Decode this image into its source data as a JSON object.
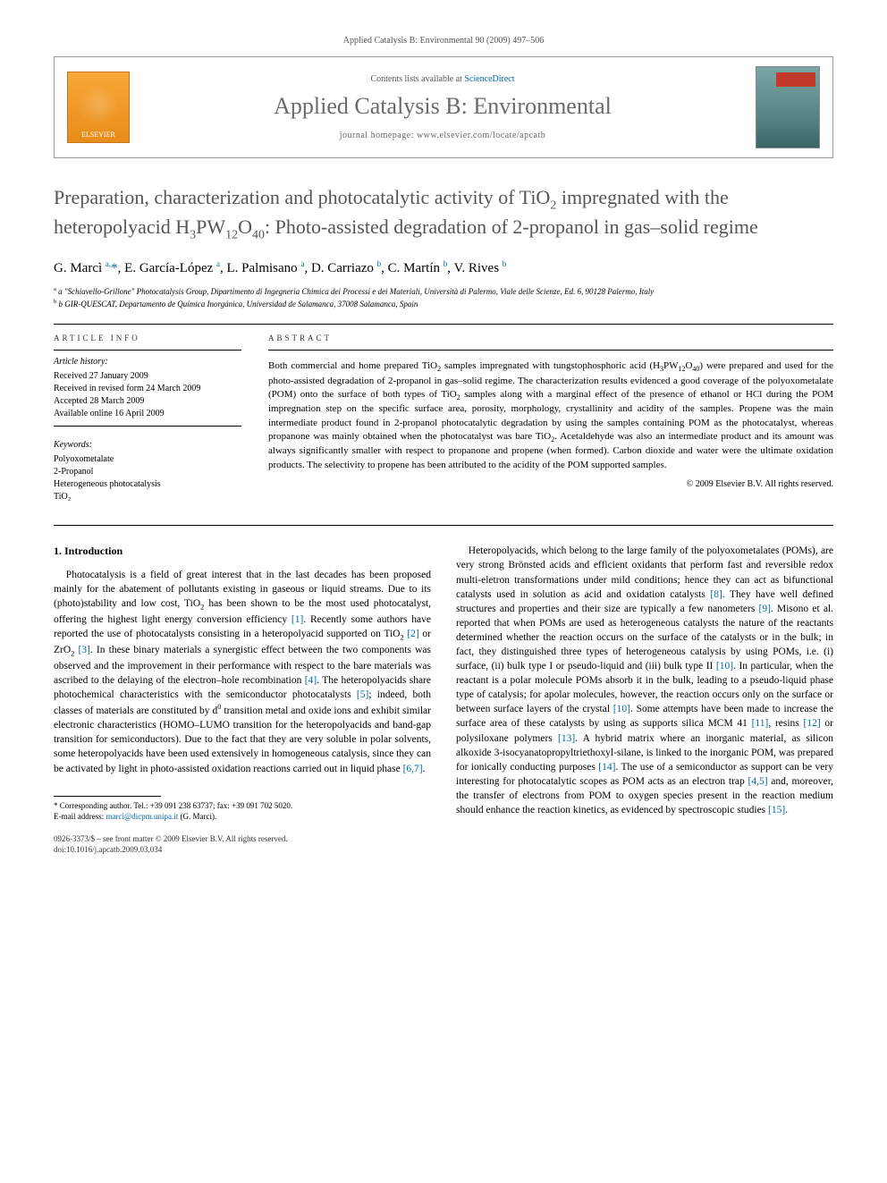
{
  "running_head": "Applied Catalysis B: Environmental 90 (2009) 497–506",
  "header": {
    "contents_prefix": "Contents lists available at ",
    "contents_link": "ScienceDirect",
    "journal": "Applied Catalysis B: Environmental",
    "homepage_prefix": "journal homepage: ",
    "homepage": "www.elsevier.com/locate/apcatb",
    "publisher_logo_label": "ELSEVIER"
  },
  "title_html": "Preparation, characterization and photocatalytic activity of TiO<sub>2</sub> impregnated with the heteropolyacid H<sub>3</sub>PW<sub>12</sub>O<sub>40</sub>: Photo-assisted degradation of 2-propanol in gas–solid regime",
  "authors_html": "G. Marcì <sup>a,</sup><span class='star'>*</span>, E. García-López <sup>a</sup>, L. Palmisano <sup>a</sup>, D. Carriazo <sup>b</sup>, C. Martín <sup>b</sup>, V. Rives <sup>b</sup>",
  "affiliations": [
    "a \"Schiavello-Grillone\" Photocatalysis Group, Dipartimento di Ingegneria Chimica dei Processi e dei Materiali, Università di Palermo, Viale delle Scienze, Ed. 6, 90128 Palermo, Italy",
    "b GIR-QUESCAT, Departamento de Química Inorgánica, Universidad de Salamanca, 37008 Salamanca, Spain"
  ],
  "article_info": {
    "heading": "ARTICLE INFO",
    "history_head": "Article history:",
    "history": [
      "Received 27 January 2009",
      "Received in revised form 24 March 2009",
      "Accepted 28 March 2009",
      "Available online 16 April 2009"
    ],
    "keywords_head": "Keywords:",
    "keywords": [
      "Polyoxometalate",
      "2-Propanol",
      "Heterogeneous photocatalysis",
      "TiO₂"
    ]
  },
  "abstract": {
    "heading": "ABSTRACT",
    "text_html": "Both commercial and home prepared TiO<sub>2</sub> samples impregnated with tungstophosphoric acid (H<sub>3</sub>PW<sub>12</sub>O<sub>40</sub>) were prepared and used for the photo-assisted degradation of 2-propanol in gas–solid regime. The characterization results evidenced a good coverage of the polyoxometalate (POM) onto the surface of both types of TiO<sub>2</sub> samples along with a marginal effect of the presence of ethanol or HCl during the POM impregnation step on the specific surface area, porosity, morphology, crystallinity and acidity of the samples. Propene was the main intermediate product found in 2-propanol photocatalytic degradation by using the samples containing POM as the photocatalyst, whereas propanone was mainly obtained when the photocatalyst was bare TiO<sub>2</sub>. Acetaldehyde was also an intermediate product and its amount was always significantly smaller with respect to propanone and propene (when formed). Carbon dioxide and water were the ultimate oxidation products. The selectivity to propene has been attributed to the acidity of the POM supported samples.",
    "copyright": "© 2009 Elsevier B.V. All rights reserved."
  },
  "sections": {
    "intro_head": "1. Introduction",
    "intro_p1_html": "Photocatalysis is a field of great interest that in the last decades has been proposed mainly for the abatement of pollutants existing in gaseous or liquid streams. Due to its (photo)stability and low cost, TiO<sub>2</sub> has been shown to be the most used photocatalyst, offering the highest light energy conversion efficiency <span class='ref'>[1]</span>. Recently some authors have reported the use of photocatalysts consisting in a heteropolyacid supported on TiO<sub>2</sub> <span class='ref'>[2]</span> or ZrO<sub>2</sub> <span class='ref'>[3]</span>. In these binary materials a synergistic effect between the two components was observed and the improvement in their performance with respect to the bare materials was ascribed to the delaying of the electron–hole recombination <span class='ref'>[4]</span>. The heteropolyacids share photochemical characteristics with the semiconductor photocatalysts <span class='ref'>[5]</span>; indeed, both classes of materials are constituted by d<sup>0</sup> transition metal and oxide ions and exhibit similar electronic characteristics (HOMO–LUMO transition for the heteropolyacids and band-gap transition for semiconductors). Due to the fact that they are very soluble in polar solvents, some heteropolyacids have been used extensively in homogeneous catalysis, since they can be activated by light in photo-assisted oxidation reactions carried out in liquid phase <span class='ref'>[6,7]</span>.",
    "intro_p2_html": "Heteropolyacids, which belong to the large family of the polyoxometalates (POMs), are very strong Brönsted acids and efficient oxidants that perform fast and reversible redox multi-eletron transformations under mild conditions; hence they can act as bifunctional catalysts used in solution as acid and oxidation catalysts <span class='ref'>[8]</span>. They have well defined structures and properties and their size are typically a few nanometers <span class='ref'>[9]</span>. Misono et al. reported that when POMs are used as heterogeneous catalysts the nature of the reactants determined whether the reaction occurs on the surface of the catalysts or in the bulk; in fact, they distinguished three types of heterogeneous catalysis by using POMs, i.e. (i) surface, (ii) bulk type I or pseudo-liquid and (iii) bulk type II <span class='ref'>[10]</span>. In particular, when the reactant is a polar molecule POMs absorb it in the bulk, leading to a pseudo-liquid phase type of catalysis; for apolar molecules, however, the reaction occurs only on the surface or between surface layers of the crystal <span class='ref'>[10]</span>. Some attempts have been made to increase the surface area of these catalysts by using as supports silica MCM 41 <span class='ref'>[11]</span>, resins <span class='ref'>[12]</span> or polysiloxane polymers <span class='ref'>[13]</span>. A hybrid matrix where an inorganic material, as silicon alkoxide 3-isocyanatopropyltriethoxyl-silane, is linked to the inorganic POM, was prepared for ionically conducting purposes <span class='ref'>[14]</span>. The use of a semiconductor as support can be very interesting for photocatalytic scopes as POM acts as an electron trap <span class='ref'>[4,5]</span> and, moreover, the transfer of electrons from POM to oxygen species present in the reaction medium should enhance the reaction kinetics, as evidenced by spectroscopic studies <span class='ref'>[15]</span>."
  },
  "corresponding": {
    "label": "* Corresponding author. Tel.: +39 091 238 63737; fax: +39 091 702 5020.",
    "email_label": "E-mail address: ",
    "email": "marci@dicpm.unipa.it",
    "email_paren": " (G. Marcì)."
  },
  "footer": {
    "line1": "0926-3373/$ – see front matter © 2009 Elsevier B.V. All rights reserved.",
    "line2": "doi:10.1016/j.apcatb.2009.03.034"
  }
}
